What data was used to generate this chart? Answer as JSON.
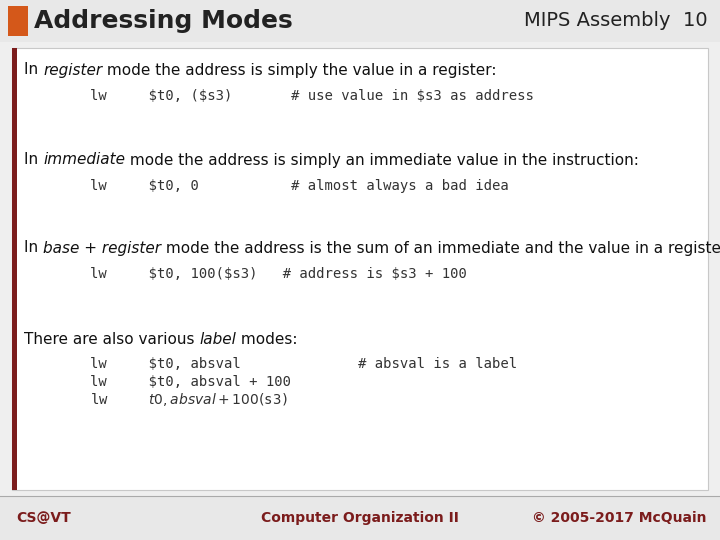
{
  "title": "Addressing Modes",
  "subtitle": "MIPS Assembly  10",
  "title_color": "#222222",
  "orange_rect_color": "#D4581A",
  "dark_red_bar_color": "#7B1C1C",
  "content_bg": "#EFEFEF",
  "body_bg": "#FFFFFF",
  "footer_left": "CS@VT",
  "footer_center": "Computer Organization II",
  "footer_right": "© 2005-2017 McQuain",
  "footer_color": "#7B1C1C",
  "para1": [
    "In ",
    "register",
    " mode the address is simply the value in a register:"
  ],
  "code1": "lw     $t0, ($s3)       # use value in $s3 as address",
  "para2": [
    "In ",
    "immediate",
    " mode the address is simply an immediate value in the instruction:"
  ],
  "code2": "lw     $t0, 0           # almost always a bad idea",
  "para3": [
    "In ",
    "base + register",
    " mode the address is the sum of an immediate and the value in a register:"
  ],
  "code3": "lw     $t0, 100($s3)   # address is $s3 + 100",
  "para4": [
    "There are also various ",
    "label",
    " modes:"
  ],
  "code4a": "lw     $t0, absval              # absval is a label",
  "code4b": "lw     $t0, absval + 100",
  "code4c": "lw     $t0, absval + 100($s3)"
}
